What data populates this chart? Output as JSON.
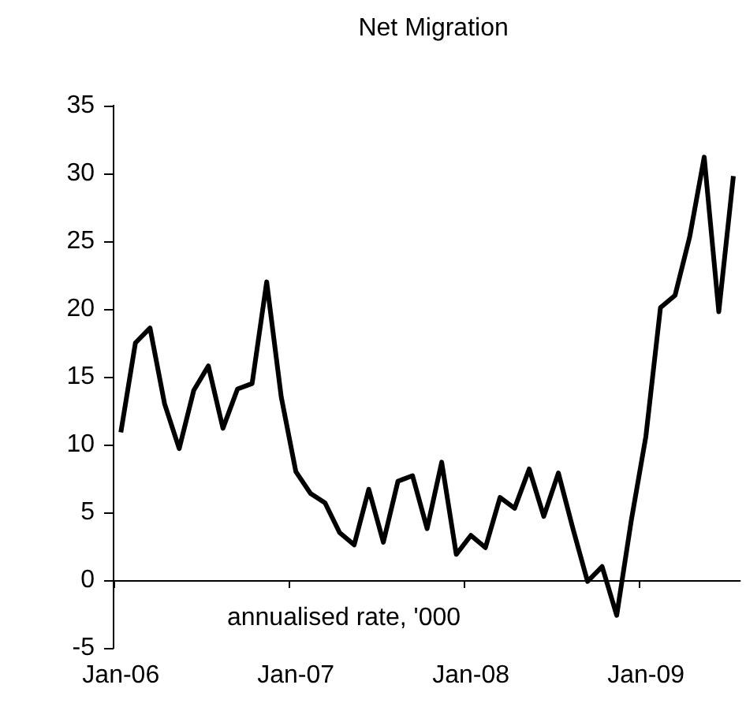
{
  "chart_data": {
    "type": "line",
    "title": "Net Migration",
    "annotations": [
      "annualised rate, '000"
    ],
    "categories": [
      "Jan-06",
      null,
      null,
      null,
      null,
      null,
      null,
      null,
      null,
      null,
      null,
      null,
      "Jan-07",
      null,
      null,
      null,
      null,
      null,
      null,
      null,
      null,
      null,
      null,
      null,
      "Jan-08",
      null,
      null,
      null,
      null,
      null,
      null,
      null,
      null,
      null,
      null,
      null,
      "Jan-09",
      null,
      null,
      null,
      null,
      null,
      null
    ],
    "values": [
      10.9,
      17.5,
      18.6,
      13.0,
      9.7,
      14.0,
      15.8,
      11.2,
      14.1,
      14.5,
      22.0,
      13.5,
      8.0,
      6.4,
      5.7,
      3.5,
      2.6,
      6.7,
      2.8,
      7.3,
      7.7,
      3.8,
      8.7,
      1.9,
      3.3,
      2.4,
      6.1,
      5.3,
      8.2,
      4.7,
      7.9,
      3.8,
      -0.1,
      1.0,
      -2.6,
      4.4,
      10.6,
      20.1,
      21.0,
      25.3,
      31.2,
      19.8,
      29.8
    ],
    "color": "#000000",
    "marker": "none",
    "ylim": [
      -5,
      35
    ],
    "yticks": [
      -5,
      0,
      5,
      10,
      15,
      20,
      25,
      30,
      35
    ],
    "legend": false
  }
}
